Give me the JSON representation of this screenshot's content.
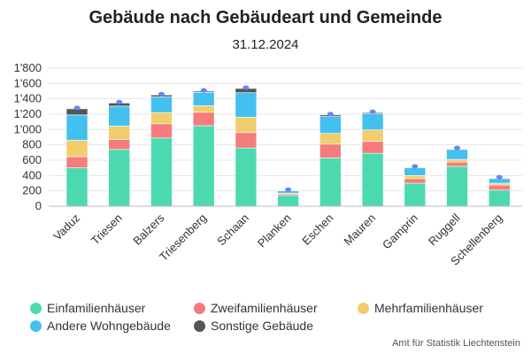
{
  "chart_data": {
    "type": "bar",
    "stacked": true,
    "title": "Gebäude nach Gebäudeart und Gemeinde",
    "subtitle": "31.12.2024",
    "categories": [
      "Vaduz",
      "Triesen",
      "Balzers",
      "Triesenberg",
      "Schaan",
      "Planken",
      "Eschen",
      "Mauren",
      "Gamprin",
      "Ruggell",
      "Schellenberg"
    ],
    "series": [
      {
        "name": "Einfamilienhäuser",
        "color": "#4dd9b0",
        "values": [
          500,
          740,
          890,
          1050,
          760,
          140,
          630,
          690,
          300,
          520,
          210
        ]
      },
      {
        "name": "Zweifamilienhäuser",
        "color": "#f47c7c",
        "values": [
          145,
          130,
          185,
          175,
          200,
          20,
          180,
          155,
          60,
          55,
          65
        ]
      },
      {
        "name": "Mehrfamilienhäuser",
        "color": "#f2cd6b",
        "values": [
          215,
          175,
          145,
          85,
          200,
          10,
          140,
          150,
          40,
          35,
          25
        ]
      },
      {
        "name": "Andere Wohngebäude",
        "color": "#42c0f0",
        "values": [
          330,
          260,
          205,
          175,
          320,
          30,
          220,
          210,
          100,
          130,
          60
        ]
      },
      {
        "name": "Sonstige Gebäude",
        "color": "#555555",
        "values": [
          80,
          40,
          25,
          15,
          55,
          5,
          20,
          15,
          8,
          8,
          8
        ]
      }
    ],
    "ylim": [
      0,
      1800
    ],
    "yticks": [
      "0",
      "200",
      "400",
      "600",
      "800",
      "1'000",
      "1'200",
      "1'400",
      "1'600",
      "1'800"
    ],
    "grid": true,
    "legend_position": "bottom",
    "marker_color": "#6688ee"
  },
  "credit": "Amt für Statistik Liechtenstein"
}
